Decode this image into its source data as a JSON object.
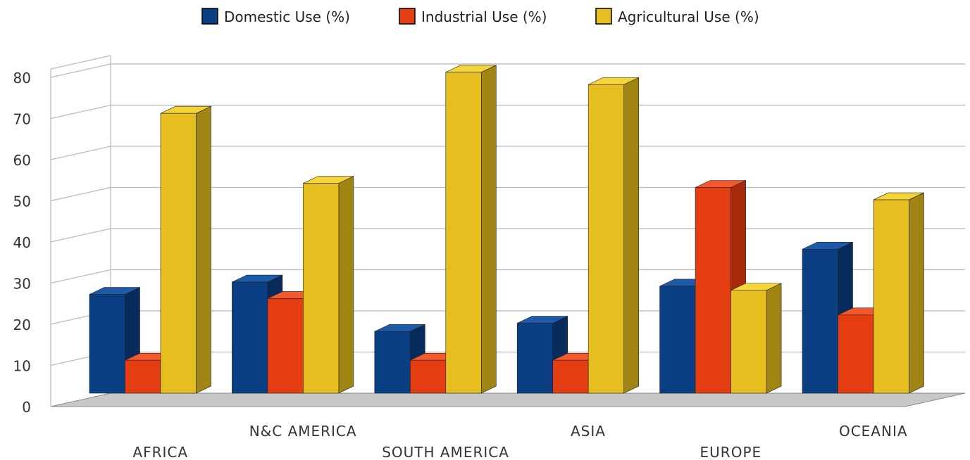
{
  "chart_data": {
    "type": "bar",
    "title": "",
    "xlabel": "",
    "ylabel": "",
    "categories": [
      "AFRICA",
      "N&C AMERICA",
      "SOUTH AMERICA",
      "ASIA",
      "EUROPE",
      "OCEANIA"
    ],
    "series": [
      {
        "name": "Domestic Use (%)",
        "color": "#0a3f84",
        "side_color": "#062b5c",
        "top_color": "#1e5aa8",
        "values": [
          24,
          27,
          15,
          17,
          26,
          35
        ]
      },
      {
        "name": "Industrial Use (%)",
        "color": "#e53d12",
        "side_color": "#a82a0a",
        "top_color": "#f25a2e",
        "values": [
          8,
          23,
          8,
          8,
          50,
          19
        ]
      },
      {
        "name": "Agricultural Use (%)",
        "color": "#e6be1f",
        "side_color": "#a08414",
        "top_color": "#f5d43a",
        "values": [
          68,
          51,
          78,
          75,
          25,
          47
        ]
      }
    ],
    "yticks": [
      "0",
      "10",
      "20",
      "30",
      "40",
      "50",
      "60",
      "70",
      "80"
    ],
    "ylim": [
      0,
      80
    ],
    "grid": true,
    "three_d": true,
    "legend_position": "top-center"
  }
}
